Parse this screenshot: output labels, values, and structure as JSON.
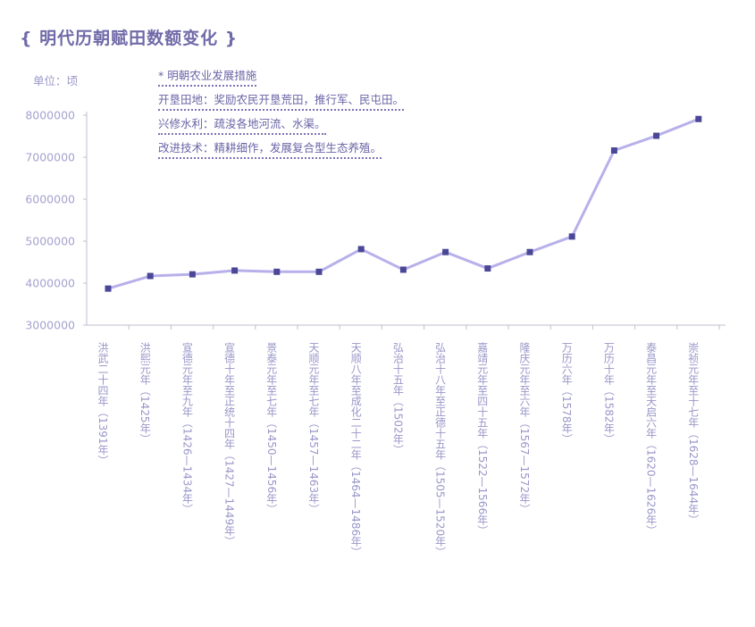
{
  "title": "{ 明代历朝赋田数额变化 }",
  "unit_label": "单位：顷",
  "notes": [
    "* 明朝农业发展措施",
    "开垦田地：奖励农民开垦荒田，推行军、民屯田。",
    "兴修水利：疏浚各地河流、水渠。",
    "改进技术：精耕细作，发展复合型生态养殖。"
  ],
  "colors": {
    "line": "#b7b0ea",
    "marker": "#4a4796",
    "axis": "#bfbfcf",
    "title": "#6f6aa8"
  },
  "chart_data": {
    "type": "line",
    "title": "明代历朝赋田数额变化",
    "ylabel": "单位：顷",
    "ylim": [
      3000000,
      8000000
    ],
    "yticks": [
      "3000000",
      "4000000",
      "5000000",
      "6000000",
      "7000000",
      "8000000"
    ],
    "grid": false,
    "categories": [
      "洪武二十四年（1391年）",
      "洪熙元年（1425年）",
      "宣德元年至九年（1426—1434年）",
      "宣德十年至正统十四年（1427—1449年）",
      "景泰元年至七年（1450—1456年）",
      "天顺元年至七年（1457—1463年）",
      "天顺八年至成化二十二年（1464—1486年）",
      "弘治十五年（1502年）",
      "弘治十八年至正德十五年（1505—1520年）",
      "嘉靖元年至四十五年（1522—1566年）",
      "隆庆元年至六年（1567—1572年）",
      "万历六年（1578年）",
      "万历十年（1582年）",
      "泰昌元年至天启六年（1620—1626年）",
      "崇祯元年至十七年（1628—1644年）"
    ],
    "values": [
      3870000,
      4170000,
      4210000,
      4300000,
      4270000,
      4270000,
      4810000,
      4320000,
      4740000,
      4350000,
      4740000,
      5110000,
      7160000,
      7510000,
      7910000
    ]
  }
}
